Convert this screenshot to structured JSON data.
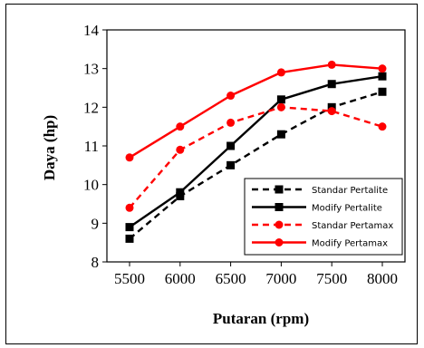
{
  "chart_data": {
    "type": "line",
    "xlabel": "Putaran (rpm)",
    "ylabel": "Daya (hp)",
    "x": [
      5500,
      6000,
      6500,
      7000,
      7500,
      8000
    ],
    "xlim": [
      5500,
      8000
    ],
    "ylim": [
      8,
      14
    ],
    "yticks": [
      8,
      9,
      10,
      11,
      12,
      13,
      14
    ],
    "grid": false,
    "legend_position": "bottom-right",
    "series": [
      {
        "name": "Standar Pertalite",
        "values": [
          8.6,
          9.7,
          10.5,
          11.3,
          12.0,
          12.4
        ],
        "color": "#000000",
        "dashed": true,
        "marker": "square"
      },
      {
        "name": "Modify Pertalite",
        "values": [
          8.9,
          9.8,
          11.0,
          12.2,
          12.6,
          12.8
        ],
        "color": "#000000",
        "dashed": false,
        "marker": "square"
      },
      {
        "name": "Standar Pertamax",
        "values": [
          9.4,
          10.9,
          11.6,
          12.0,
          11.9,
          11.5
        ],
        "color": "#ff0000",
        "dashed": true,
        "marker": "circle"
      },
      {
        "name": "Modify Pertamax",
        "values": [
          10.7,
          11.5,
          12.3,
          12.9,
          13.1,
          13.0
        ],
        "color": "#ff0000",
        "dashed": false,
        "marker": "circle"
      }
    ]
  }
}
